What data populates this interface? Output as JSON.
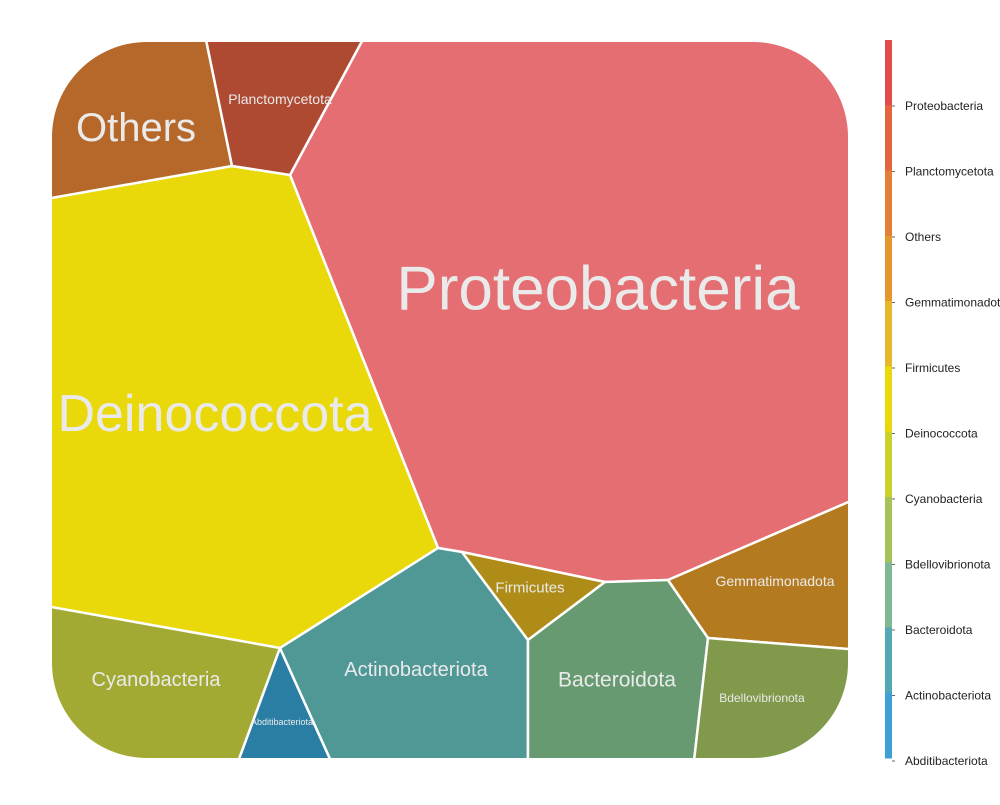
{
  "chart_data": {
    "type": "voronoi-treemap",
    "title": "",
    "cells": [
      {
        "name": "Proteobacteria",
        "color": "#E46E71",
        "label_color": "#EAEAEA"
      },
      {
        "name": "Deinococcota",
        "color": "#E9D80A",
        "label_color": "#EAEAEA"
      },
      {
        "name": "Others",
        "color": "#B6682A",
        "label_color": "#EAEAEA"
      },
      {
        "name": "Planctomycetota",
        "color": "#AD4A31",
        "label_color": "#EAEAEA"
      },
      {
        "name": "Cyanobacteria",
        "color": "#A3AA33",
        "label_color": "#EAEAEA"
      },
      {
        "name": "Abditibacteriota",
        "color": "#2A7EA4",
        "label_color": "#EAEAEA"
      },
      {
        "name": "Actinobacteriota",
        "color": "#4F9896",
        "label_color": "#EAEAEA"
      },
      {
        "name": "Firmicutes",
        "color": "#AE8C17",
        "label_color": "#EAEAEA"
      },
      {
        "name": "Bacteroidota",
        "color": "#689A71",
        "label_color": "#EAEAEA"
      },
      {
        "name": "Gemmatimonadota",
        "color": "#B47A20",
        "label_color": "#EAEAEA"
      },
      {
        "name": "Bdellovibrionota",
        "color": "#80994B",
        "label_color": "#EAEAEA"
      }
    ],
    "legend": {
      "position": "right",
      "entries": [
        "Proteobacteria",
        "Planctomycetota",
        "Others",
        "Gemmatimonadota",
        "Firmicutes",
        "Deinococcota",
        "Cyanobacteria",
        "Bdellovibrionota",
        "Bacteroidota",
        "Actinobacteriota",
        "Abditibacteriota"
      ],
      "bar_colors": [
        "#E04B4B",
        "#E4653D",
        "#E47F36",
        "#E4982C",
        "#E6B72A",
        "#E9D80A",
        "#CBD12A",
        "#A8C25A",
        "#7FB893",
        "#53A8B4",
        "#3FA0D8"
      ]
    }
  }
}
